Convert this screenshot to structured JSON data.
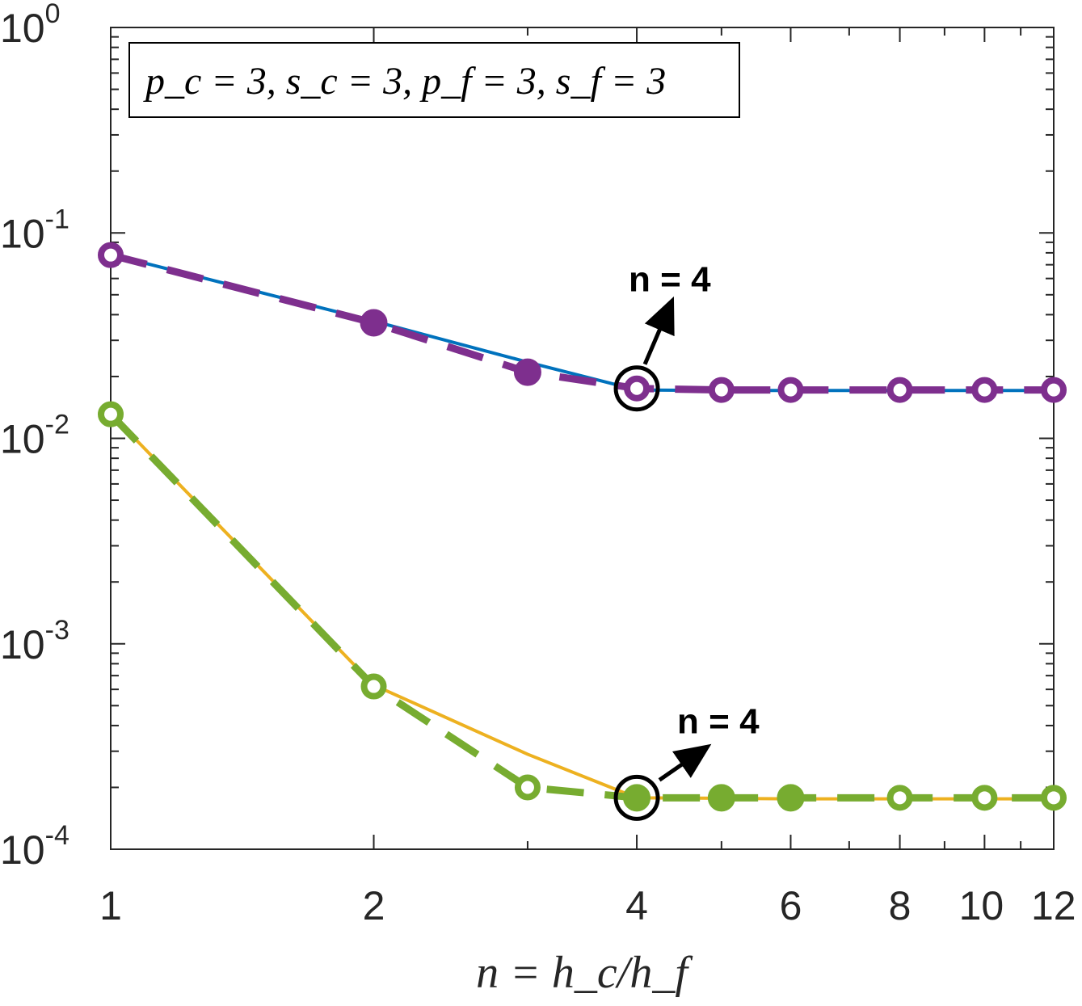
{
  "chart_data": {
    "type": "line",
    "xscale": "log",
    "yscale": "log",
    "xlim": [
      1,
      12
    ],
    "ylim": [
      0.0001,
      1
    ],
    "x_ticks": [
      {
        "value": 1,
        "label": "1"
      },
      {
        "value": 2,
        "label": "2"
      },
      {
        "value": 4,
        "label": "4"
      },
      {
        "value": 6,
        "label": "6"
      },
      {
        "value": 8,
        "label": "8"
      },
      {
        "value": 10,
        "label": "10"
      },
      {
        "value": 12,
        "label": "12"
      }
    ],
    "y_ticks": [
      {
        "value": 0.0001,
        "base": "10",
        "exp": "-4"
      },
      {
        "value": 0.001,
        "base": "10",
        "exp": "-3"
      },
      {
        "value": 0.01,
        "base": "10",
        "exp": "-2"
      },
      {
        "value": 0.1,
        "base": "10",
        "exp": "-1"
      },
      {
        "value": 1,
        "base": "10",
        "exp": "0"
      }
    ],
    "xlabel": "n = h_c/h_f",
    "legend_text": "p_c = 3, s_c = 3, p_f = 3, s_f = 3",
    "legend_position": "top-left",
    "series": [
      {
        "name": "series-blue-solid",
        "color": "#0072BD",
        "style": "solid",
        "marker": "none",
        "x": [
          1,
          2,
          3,
          4,
          5,
          6,
          8,
          10,
          12
        ],
        "y": [
          0.0785,
          0.0372,
          0.0235,
          0.0172,
          0.0171,
          0.0171,
          0.0171,
          0.0171,
          0.0171
        ]
      },
      {
        "name": "series-purple-dashed",
        "color": "#7E2F8E",
        "style": "dashed",
        "marker": "alternating",
        "x": [
          1,
          2,
          3,
          4,
          5,
          6,
          8,
          10,
          12
        ],
        "y": [
          0.078,
          0.0365,
          0.021,
          0.0175,
          0.0172,
          0.0172,
          0.0172,
          0.0172,
          0.0172
        ],
        "filled": [
          false,
          true,
          true,
          false,
          false,
          false,
          false,
          false,
          false
        ]
      },
      {
        "name": "series-yellow-solid",
        "color": "#EDB120",
        "style": "solid",
        "marker": "none",
        "x": [
          1,
          2,
          3,
          4,
          5,
          6,
          8,
          10,
          12
        ],
        "y": [
          0.0132,
          0.00063,
          0.00029,
          0.000178,
          0.000177,
          0.000176,
          0.000176,
          0.000176,
          0.000176
        ]
      },
      {
        "name": "series-green-dashed",
        "color": "#77AC30",
        "style": "dashed",
        "marker": "alternating",
        "x": [
          1,
          2,
          3,
          4,
          5,
          6,
          8,
          10,
          12
        ],
        "y": [
          0.0131,
          0.00062,
          0.0002,
          0.000178,
          0.000178,
          0.000178,
          0.000178,
          0.000178,
          0.000178
        ],
        "filled": [
          false,
          false,
          false,
          true,
          true,
          true,
          false,
          false,
          false
        ]
      }
    ],
    "annotations": [
      {
        "text": "n = 4",
        "x": 4,
        "y": 0.0175,
        "color": "#000000"
      },
      {
        "text": "n = 4",
        "x": 4,
        "y": 0.000178,
        "color": "#000000"
      }
    ]
  }
}
